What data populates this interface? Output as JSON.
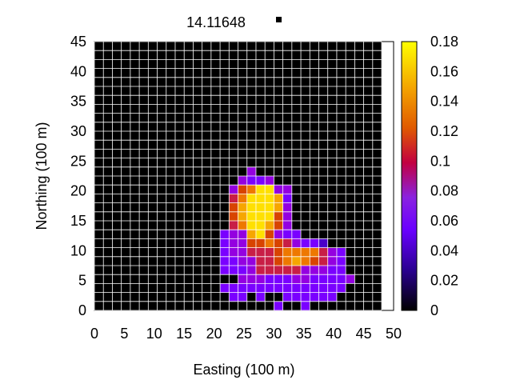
{
  "chart_data": {
    "type": "heatmap",
    "title": "14.11648",
    "xlabel": "Easting (100 m)",
    "ylabel": "Northing (100 m)",
    "xlim": [
      0,
      50
    ],
    "ylim": [
      0,
      45
    ],
    "xticks": [
      "0",
      "5",
      "10",
      "15",
      "20",
      "25",
      "30",
      "35",
      "40",
      "45",
      "50"
    ],
    "yticks": [
      "0",
      "5",
      "10",
      "15",
      "20",
      "25",
      "30",
      "35",
      "40",
      "45"
    ],
    "colorbar": {
      "range": [
        0,
        0.18
      ],
      "ticks": [
        "0",
        "0.02",
        "0.04",
        "0.06",
        "0.08",
        "0.1",
        "0.12",
        "0.14",
        "0.16",
        "0.18"
      ]
    },
    "grid": true,
    "legend_position": "top",
    "grid_spec": {
      "x0": 0,
      "y0": 0,
      "cell": 1.5,
      "cols": 32,
      "rows": 30,
      "row0": "top"
    },
    "cells": [
      "................................",
      "................................",
      "................................",
      "................................",
      "................................",
      "................................",
      "................................",
      "................................",
      "................................",
      "................................",
      "................................",
      "................................",
      "................................",
      "................................",
      ".................4..............",
      "................4334............",
      "...............4679944..........",
      "...............5799983..........",
      "...............6899984..........",
      "...............6899964..........",
      "...............5799864..........",
      "..............344896433.........",
      "..............344667654332......",
      "..............34455567777543....",
      "..............33445567876543....",
      "..............33345555544433....",
      "................4443334433334...",
      "..............33333333333333....",
      "...............33.3..333333.....",
      "....................3..3........"
    ],
    "legend": [
      {
        "marker": "square",
        "color": "#000000"
      }
    ]
  },
  "colors": {
    "background": "#000000",
    "grid": "#ffffff"
  }
}
